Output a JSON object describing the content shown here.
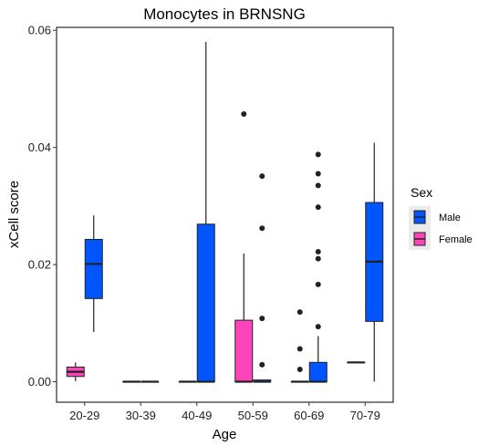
{
  "chart_data": {
    "type": "boxplot",
    "title": "Monocytes in BRNSNG",
    "xlabel": "Age",
    "ylabel": "xCell score",
    "categories": [
      "20-29",
      "30-39",
      "40-49",
      "50-59",
      "60-69",
      "70-79"
    ],
    "ylim": [
      -0.0035,
      0.0605
    ],
    "yticks": [
      0.0,
      0.02,
      0.04,
      0.06
    ],
    "ytick_labels": [
      "0.00",
      "0.02",
      "0.04",
      "0.06"
    ],
    "grid": false,
    "legend": {
      "title": "Sex",
      "position": "right",
      "entries": [
        {
          "name": "Male",
          "color": "#0055FF"
        },
        {
          "name": "Female",
          "color": "#FF44BB"
        }
      ]
    },
    "series": [
      {
        "name": "Male",
        "color": "#0055FF",
        "boxes": [
          {
            "category": "20-29",
            "whisker_low": 0.0085,
            "q1": 0.0142,
            "median": 0.0201,
            "q3": 0.0243,
            "whisker_high": 0.0284,
            "outliers": []
          },
          {
            "category": "30-39",
            "whisker_low": 0.0,
            "q1": 0.0,
            "median": 0.0,
            "q3": 0.0,
            "whisker_high": 0.0,
            "outliers": []
          },
          {
            "category": "40-49",
            "whisker_low": 0.0,
            "q1": 0.0,
            "median": 0.0,
            "q3": 0.0269,
            "whisker_high": 0.058,
            "outliers": []
          },
          {
            "category": "50-59",
            "whisker_low": 0.0,
            "q1": 0.0,
            "median": 0.0,
            "q3": 0.0003,
            "whisker_high": 0.0003,
            "outliers": [
              0.0029,
              0.0108,
              0.0262,
              0.0351
            ]
          },
          {
            "category": "60-69",
            "whisker_low": 0.0,
            "q1": 0.0,
            "median": 0.0,
            "q3": 0.0033,
            "whisker_high": 0.0078,
            "outliers": [
              0.0094,
              0.0166,
              0.021,
              0.0222,
              0.0298,
              0.0335,
              0.0355,
              0.0388
            ]
          },
          {
            "category": "70-79",
            "whisker_low": 0.0,
            "q1": 0.0103,
            "median": 0.0205,
            "q3": 0.0306,
            "whisker_high": 0.0408,
            "outliers": []
          }
        ]
      },
      {
        "name": "Female",
        "color": "#FF44BB",
        "boxes": [
          {
            "category": "20-29",
            "whisker_low": 0.0001,
            "q1": 0.0009,
            "median": 0.0017,
            "q3": 0.0025,
            "whisker_high": 0.0033,
            "outliers": []
          },
          {
            "category": "30-39",
            "whisker_low": 0.0,
            "q1": 0.0,
            "median": 0.0,
            "q3": 0.0,
            "whisker_high": 0.0,
            "outliers": []
          },
          {
            "category": "40-49",
            "whisker_low": 0.0,
            "q1": 0.0,
            "median": 0.0,
            "q3": 0.0,
            "whisker_high": 0.0,
            "outliers": []
          },
          {
            "category": "50-59",
            "whisker_low": 0.0,
            "q1": 0.0,
            "median": 0.0,
            "q3": 0.0105,
            "whisker_high": 0.0219,
            "outliers": [
              0.0457
            ]
          },
          {
            "category": "60-69",
            "whisker_low": 0.0,
            "q1": 0.0,
            "median": 0.0,
            "q3": 0.0,
            "whisker_high": 0.0,
            "outliers": [
              0.0021,
              0.0056,
              0.0119
            ]
          },
          {
            "category": "70-79",
            "whisker_low": 0.0033,
            "q1": 0.0033,
            "median": 0.0033,
            "q3": 0.0033,
            "whisker_high": 0.0033,
            "outliers": []
          }
        ]
      }
    ]
  }
}
